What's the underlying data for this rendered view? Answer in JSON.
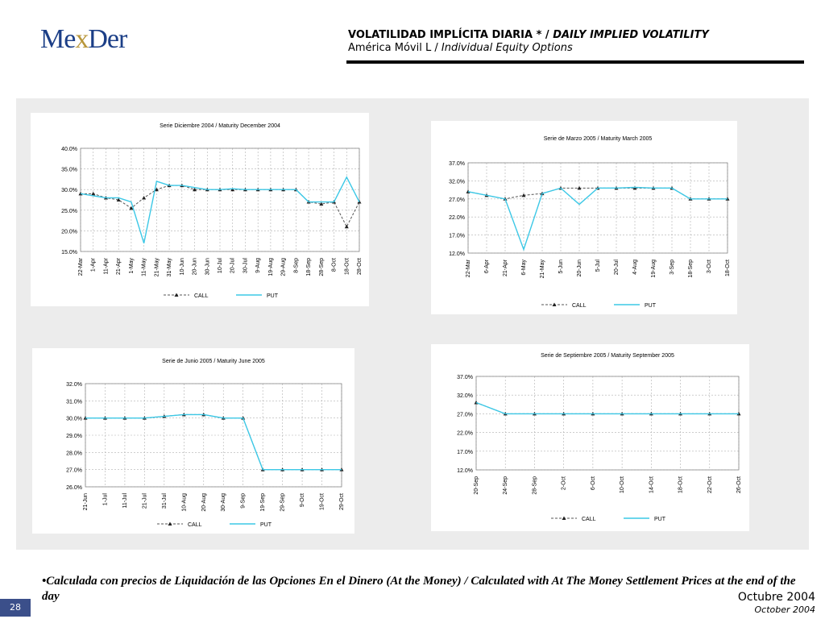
{
  "logo": {
    "left": "Me",
    "x": "x",
    "right": "Der"
  },
  "header": {
    "title_plain": "VOLATILIDAD IMPLÍCITA DIARIA * / ",
    "title_italic": "DAILY IMPLIED VOLATILITY",
    "subtitle_plain": "América Móvil L / ",
    "subtitle_italic": "Individual Equity Options"
  },
  "footnote": "•Calculada con precios de Liquidación de las Opciones En el Dinero (At the Money) / Calculated with At The Money Settlement Prices at the end of the day",
  "date_es": "Octubre 2004",
  "date_en": "October 2004",
  "page_number": "28",
  "colors": {
    "call": "#555555",
    "put": "#3cc8e6",
    "grid": "#b0b0b0"
  },
  "chart_data": [
    {
      "type": "line",
      "title": "Serie Diciembre 2004 / Maturity December 2004",
      "ylim": [
        15,
        40
      ],
      "yticks": [
        "15.0%",
        "20.0%",
        "25.0%",
        "30.0%",
        "35.0%",
        "40.0%"
      ],
      "categories": [
        "22-Mar",
        "1-Apr",
        "11-Apr",
        "21-Apr",
        "1-May",
        "11-May",
        "21-May",
        "31-May",
        "10-Jun",
        "20-Jun",
        "30-Jun",
        "10-Jul",
        "20-Jul",
        "30-Jul",
        "9-Aug",
        "19-Aug",
        "29-Aug",
        "8-Sep",
        "18-Sep",
        "28-Sep",
        "8-Oct",
        "18-Oct",
        "28-Oct"
      ],
      "series": [
        {
          "name": "CALL",
          "values": [
            29,
            29,
            28,
            27.5,
            25.5,
            28,
            30,
            31,
            31,
            30,
            30,
            30,
            30,
            30,
            30,
            30,
            30,
            30,
            27,
            26.5,
            27,
            21,
            27
          ]
        },
        {
          "name": "PUT",
          "values": [
            29,
            28.5,
            28,
            28,
            27,
            17,
            32,
            31,
            31,
            30.5,
            30,
            30,
            30.2,
            30,
            30,
            30,
            30,
            30,
            27,
            27,
            27,
            33,
            27
          ]
        }
      ]
    },
    {
      "type": "line",
      "title": "Serie de Marzo 2005 / Maturity March 2005",
      "ylim": [
        12,
        37
      ],
      "yticks": [
        "12.0%",
        "17.0%",
        "22.0%",
        "27.0%",
        "32.0%",
        "37.0%"
      ],
      "categories": [
        "22-Mar",
        "6-Apr",
        "21-Apr",
        "6-May",
        "21-May",
        "5-Jun",
        "20-Jun",
        "5-Jul",
        "20-Jul",
        "4-Aug",
        "19-Aug",
        "3-Sep",
        "18-Sep",
        "3-Oct",
        "18-Oct"
      ],
      "series": [
        {
          "name": "CALL",
          "values": [
            29,
            28,
            27,
            28,
            28.5,
            30,
            30,
            30,
            30,
            30,
            30,
            30,
            27,
            27,
            27
          ]
        },
        {
          "name": "PUT",
          "values": [
            29,
            28,
            27,
            13,
            28.5,
            30,
            25.5,
            30,
            30,
            30.2,
            30,
            30,
            27,
            27,
            27
          ]
        }
      ]
    },
    {
      "type": "line",
      "title": "Serie de Junio 2005 / Maturity June 2005",
      "ylim": [
        26,
        32
      ],
      "yticks": [
        "26.0%",
        "27.0%",
        "28.0%",
        "29.0%",
        "30.0%",
        "31.0%",
        "32.0%"
      ],
      "categories": [
        "21-Jun",
        "1-Jul",
        "11-Jul",
        "21-Jul",
        "31-Jul",
        "10-Aug",
        "20-Aug",
        "30-Aug",
        "9-Sep",
        "19-Sep",
        "29-Sep",
        "9-Oct",
        "19-Oct",
        "29-Oct"
      ],
      "series": [
        {
          "name": "CALL",
          "values": [
            30,
            30,
            30,
            30,
            30.1,
            30.2,
            30.2,
            30,
            30,
            27,
            27,
            27,
            27,
            27
          ]
        },
        {
          "name": "PUT",
          "values": [
            30,
            30,
            30,
            30,
            30.1,
            30.2,
            30.2,
            30,
            30,
            27,
            27,
            27,
            27,
            27
          ]
        }
      ]
    },
    {
      "type": "line",
      "title": "Serie de Septiembre 2005 / Maturity September 2005",
      "ylim": [
        12,
        37
      ],
      "yticks": [
        "12.0%",
        "17.0%",
        "22.0%",
        "27.0%",
        "32.0%",
        "37.0%"
      ],
      "categories": [
        "20-Sep",
        "24-Sep",
        "28-Sep",
        "2-Oct",
        "6-Oct",
        "10-Oct",
        "14-Oct",
        "18-Oct",
        "22-Oct",
        "26-Oct"
      ],
      "series": [
        {
          "name": "CALL",
          "values": [
            30,
            27,
            27,
            27,
            27,
            27,
            27,
            27,
            27,
            27
          ]
        },
        {
          "name": "PUT",
          "values": [
            30,
            27,
            27,
            27,
            27,
            27,
            27,
            27,
            27,
            27
          ]
        }
      ]
    }
  ]
}
